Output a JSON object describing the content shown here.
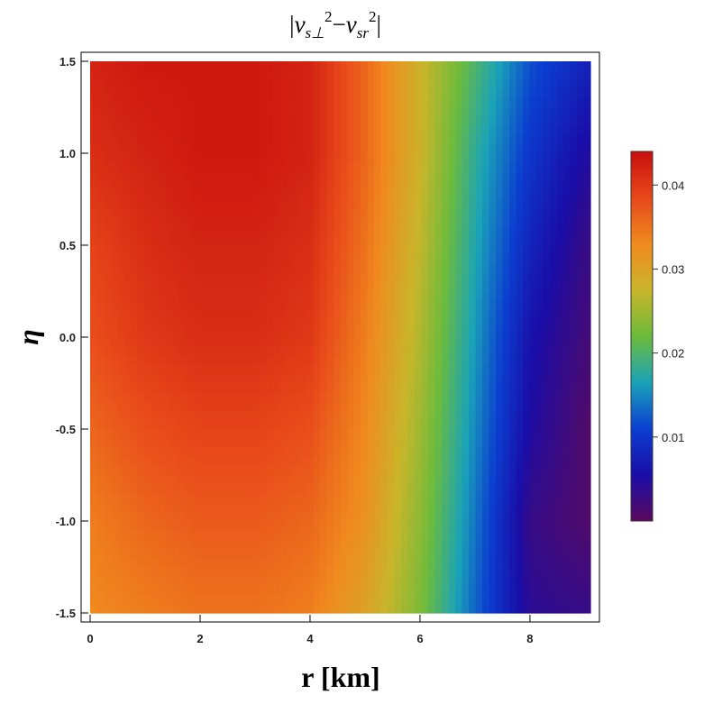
{
  "chart_data": {
    "type": "heatmap",
    "title": {
      "abs_open": "|",
      "v1": "v",
      "v1_sub": "s⊥",
      "sup1": "2",
      "minus": "−",
      "v2": "v",
      "v2_sub": "sr",
      "sup2": "2",
      "abs_close": "|"
    },
    "xlabel": "r [km]",
    "ylabel": "η",
    "xlim": [
      0,
      9.1
    ],
    "ylim": [
      -1.5,
      1.5
    ],
    "x_ticks": [
      0,
      2,
      4,
      6,
      8
    ],
    "x_tick_labels": [
      "0",
      "2",
      "4",
      "6",
      "8"
    ],
    "y_ticks": [
      1.5,
      1.0,
      0.5,
      0.0,
      -0.5,
      -1.0,
      -1.5
    ],
    "y_tick_labels": [
      "1.5",
      "1.0",
      "0.5",
      "0.0",
      "-0.5",
      "-1.0",
      "-1.5"
    ],
    "colorbar": {
      "range": [
        0,
        0.044
      ],
      "ticks": [
        0.04,
        0.03,
        0.02,
        0.01
      ],
      "tick_labels": [
        "0.04",
        "0.03",
        "0.02",
        "0.01"
      ],
      "colormap": [
        "#5a0a5e",
        "#1a0da8",
        "#0b3fd0",
        "#1aa3b8",
        "#6cbb3c",
        "#c9b52a",
        "#f08a1e",
        "#e8481a",
        "#c80e0e"
      ]
    },
    "x": [
      0,
      1,
      2,
      3,
      4,
      5,
      6,
      7,
      8,
      9
    ],
    "y": [
      1.5,
      1.0,
      0.5,
      0.0,
      -0.5,
      -1.0,
      -1.5
    ],
    "values": [
      [
        0.042,
        0.043,
        0.043,
        0.043,
        0.042,
        0.036,
        0.028,
        0.02,
        0.012,
        0.008
      ],
      [
        0.041,
        0.042,
        0.043,
        0.043,
        0.042,
        0.036,
        0.028,
        0.018,
        0.01,
        0.005
      ],
      [
        0.039,
        0.041,
        0.042,
        0.042,
        0.041,
        0.035,
        0.027,
        0.017,
        0.008,
        0.003
      ],
      [
        0.038,
        0.04,
        0.041,
        0.041,
        0.04,
        0.034,
        0.026,
        0.016,
        0.006,
        0.002
      ],
      [
        0.036,
        0.038,
        0.039,
        0.039,
        0.038,
        0.033,
        0.025,
        0.015,
        0.005,
        0.001
      ],
      [
        0.034,
        0.036,
        0.037,
        0.037,
        0.036,
        0.032,
        0.024,
        0.014,
        0.003,
        0.001
      ],
      [
        0.033,
        0.034,
        0.035,
        0.035,
        0.034,
        0.03,
        0.023,
        0.013,
        0.004,
        0.003
      ]
    ]
  }
}
